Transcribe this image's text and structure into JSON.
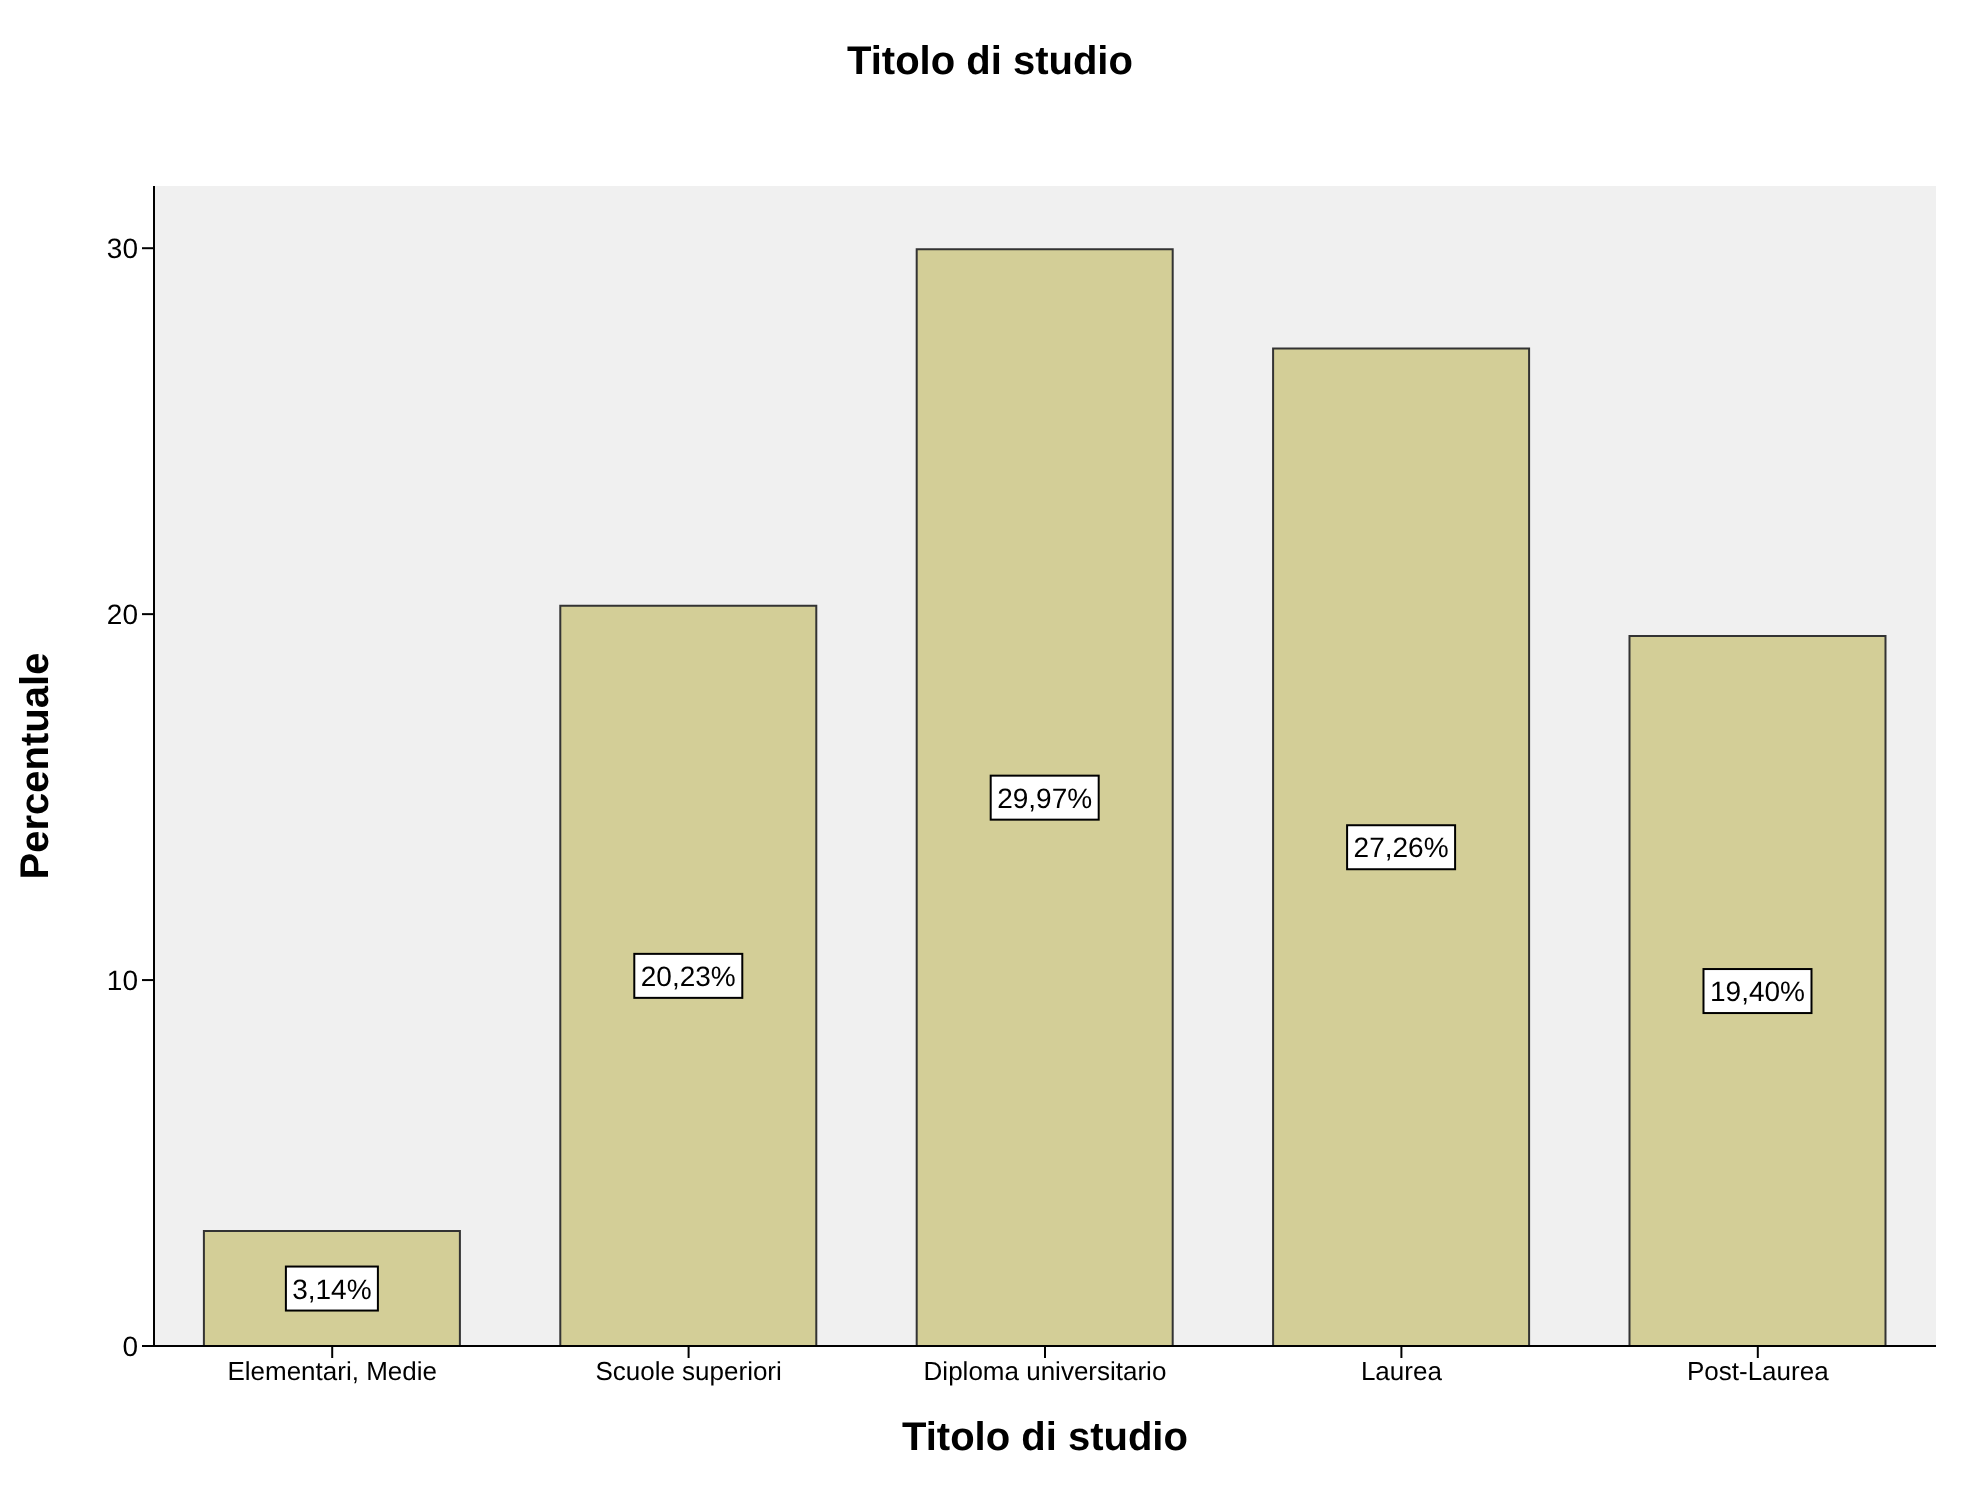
{
  "chart_data": {
    "type": "bar",
    "title": "Titolo di studio",
    "xlabel": "Titolo di studio",
    "ylabel": "Percentuale",
    "categories": [
      "Elementari, Medie",
      "Scuole superiori",
      "Diploma universitario",
      "Laurea",
      "Post-Laurea"
    ],
    "values": [
      3.14,
      20.23,
      29.97,
      27.26,
      19.4
    ],
    "value_labels": [
      "3,14%",
      "20,23%",
      "29,97%",
      "27,26%",
      "19,40%"
    ],
    "color": "#d3ce97",
    "ylim": [
      0,
      31.7
    ],
    "yticks": [
      0,
      10,
      20,
      30
    ],
    "grid": false
  }
}
